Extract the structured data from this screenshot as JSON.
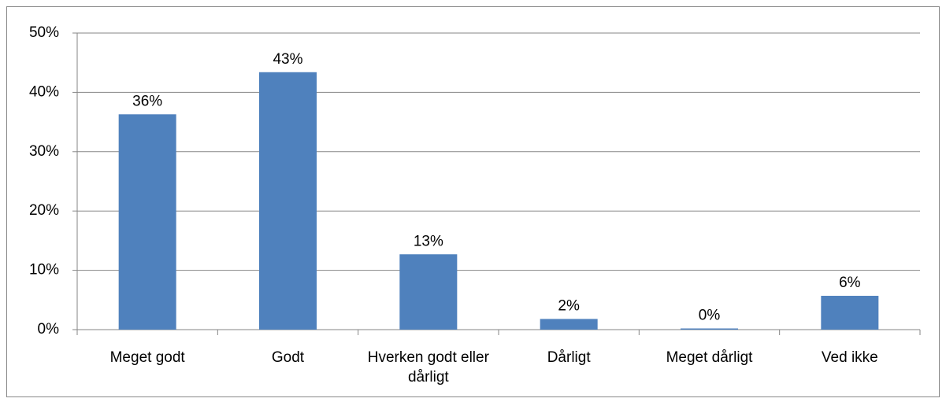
{
  "chart_data": {
    "type": "bar",
    "categories": [
      "Meget godt",
      "Godt",
      "Hverken godt eller dårligt",
      "Dårligt",
      "Meget dårligt",
      "Ved ikke"
    ],
    "values": [
      36.3,
      43.4,
      12.7,
      1.8,
      0.2,
      5.7
    ],
    "value_labels": [
      "36%",
      "43%",
      "13%",
      "2%",
      "0%",
      "6%"
    ],
    "color": "#4f81bd",
    "ylim": [
      0,
      50
    ],
    "yticks": [
      {
        "value": 0,
        "label": "0%"
      },
      {
        "value": 10,
        "label": "10%"
      },
      {
        "value": 20,
        "label": "20%"
      },
      {
        "value": 30,
        "label": "30%"
      },
      {
        "value": 40,
        "label": "40%"
      },
      {
        "value": 50,
        "label": "50%"
      }
    ],
    "grid": true
  }
}
